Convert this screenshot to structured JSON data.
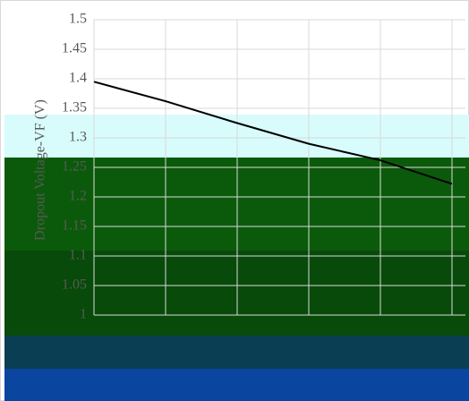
{
  "chart_data": {
    "type": "line",
    "y_label": "Dropout Voltage-VF (V)",
    "categories": [
      null,
      null,
      null,
      null,
      null,
      null
    ],
    "series": [
      {
        "name": null,
        "color": "#000000",
        "values": [
          1.395,
          1.362,
          1.325,
          1.29,
          1.262,
          1.222
        ]
      }
    ],
    "ylim": [
      1.0,
      1.5
    ],
    "yticks": [
      1.0,
      1.05,
      1.1,
      1.15,
      1.2,
      1.25,
      1.3,
      1.35,
      1.4,
      1.45,
      1.5
    ],
    "grid": true
  }
}
